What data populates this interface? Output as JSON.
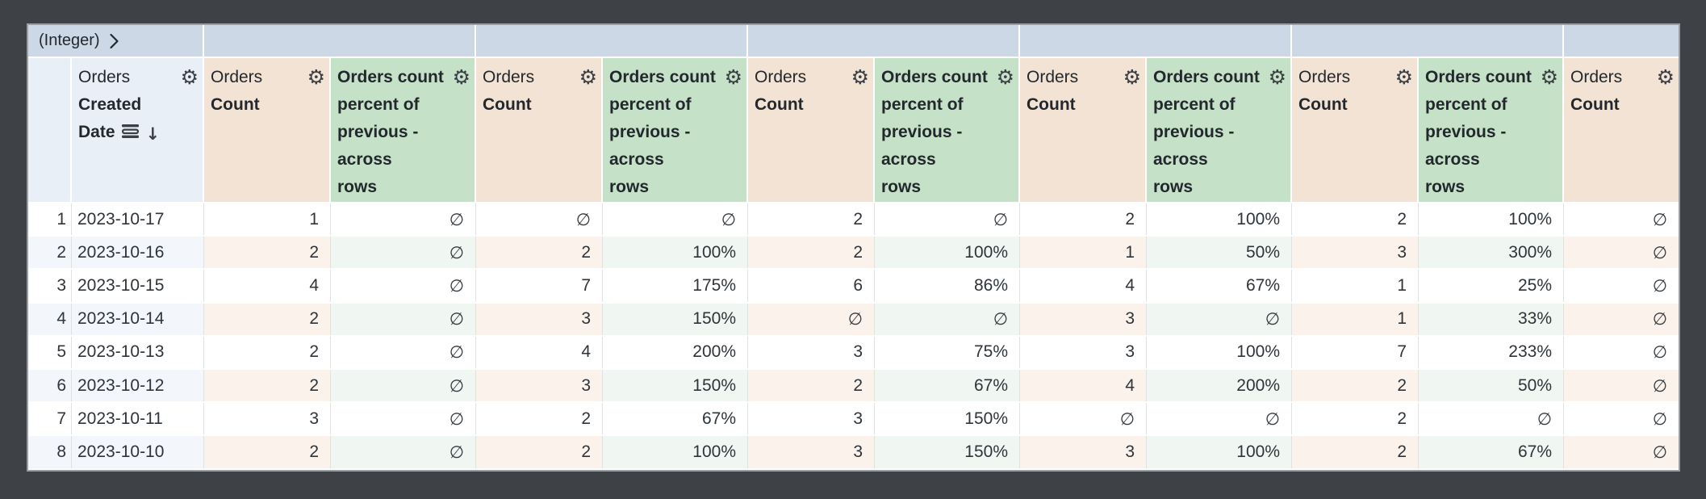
{
  "pivot_bar": {
    "label": "(Integer)"
  },
  "headers": {
    "row_number": "",
    "dimension": {
      "view_label": "Orders",
      "field_label": "Created Date",
      "field_lines": [
        "Created",
        "Date"
      ],
      "sort": "descending"
    },
    "measure": {
      "view_label": "Orders",
      "field_label": "Count"
    },
    "calc": {
      "label": "Orders count percent of previous - across rows",
      "label_lines": [
        "Orders count",
        "percent of",
        "previous -",
        "across",
        "rows"
      ]
    }
  },
  "columns": {
    "measure_columns": 6,
    "calc_columns": 5
  },
  "null_symbol": "∅",
  "icons": {
    "gear": "⚙",
    "sort_desc": "↓",
    "chevron_right": "›"
  },
  "rows": [
    {
      "index": "1",
      "date": "2023-10-17",
      "values": [
        "1",
        "∅",
        "∅",
        "∅",
        "2",
        "∅",
        "2",
        "100%",
        "2",
        "100%",
        "∅"
      ]
    },
    {
      "index": "2",
      "date": "2023-10-16",
      "values": [
        "2",
        "∅",
        "2",
        "100%",
        "2",
        "100%",
        "1",
        "50%",
        "3",
        "300%",
        "∅"
      ]
    },
    {
      "index": "3",
      "date": "2023-10-15",
      "values": [
        "4",
        "∅",
        "7",
        "175%",
        "6",
        "86%",
        "4",
        "67%",
        "1",
        "25%",
        "∅"
      ]
    },
    {
      "index": "4",
      "date": "2023-10-14",
      "values": [
        "2",
        "∅",
        "3",
        "150%",
        "∅",
        "∅",
        "3",
        "∅",
        "1",
        "33%",
        "∅"
      ]
    },
    {
      "index": "5",
      "date": "2023-10-13",
      "values": [
        "2",
        "∅",
        "4",
        "200%",
        "3",
        "75%",
        "3",
        "100%",
        "7",
        "233%",
        "∅"
      ]
    },
    {
      "index": "6",
      "date": "2023-10-12",
      "values": [
        "2",
        "∅",
        "3",
        "150%",
        "2",
        "67%",
        "4",
        "200%",
        "2",
        "50%",
        "∅"
      ]
    },
    {
      "index": "7",
      "date": "2023-10-11",
      "values": [
        "3",
        "∅",
        "2",
        "67%",
        "3",
        "150%",
        "∅",
        "∅",
        "2",
        "∅",
        "∅"
      ]
    },
    {
      "index": "8",
      "date": "2023-10-10",
      "values": [
        "2",
        "∅",
        "2",
        "100%",
        "3",
        "150%",
        "3",
        "100%",
        "2",
        "67%",
        "∅"
      ]
    }
  ],
  "colors": {
    "frame_bg": "#3E4247",
    "card_border": "#9A9EA3",
    "pivot_bar_bg": "#CCD8E6",
    "dimension_header_bg": "#E9EFF7",
    "measure_header_bg": "#F2E3D4",
    "calc_header_bg": "#C5E1C7",
    "even_row_dimension_bg": "#F3F6FA",
    "even_row_measure_bg": "#FAF2EB",
    "even_row_calc_bg": "#F0F6F1",
    "text": "#2E343A",
    "grid_line": "#E0E1E3"
  }
}
